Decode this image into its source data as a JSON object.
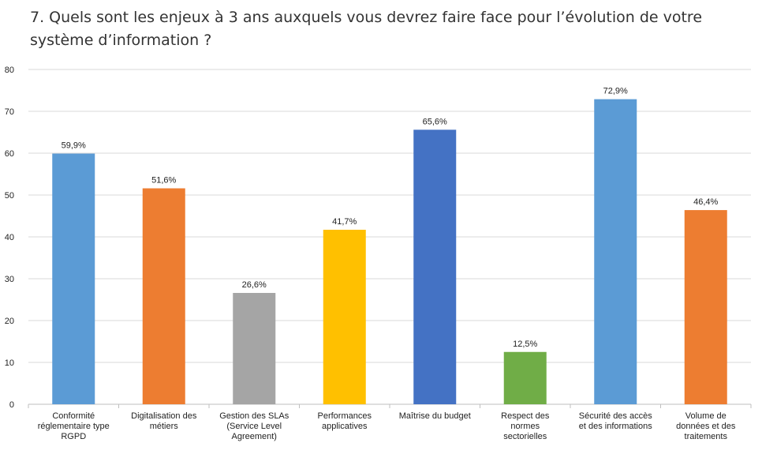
{
  "chart_data": {
    "type": "bar",
    "title": "7. Quels sont les enjeux à 3 ans auxquels vous devrez faire face pour l’évolution de votre système d’information ?",
    "categories": [
      "Conformité\nréglementaire type\nRGPD",
      "Digitalisation des\nmétiers",
      "Gestion des SLAs\n(Service Level\nAgreement)",
      "Performances\napplicatives",
      "Maîtrise du budget",
      "Respect des\nnormes\nsectorielles",
      "Sécurité des accès\net des informations",
      "Volume de\ndonnées et des\ntraitements"
    ],
    "values": [
      59.9,
      51.6,
      26.6,
      41.7,
      65.6,
      12.5,
      72.9,
      46.4
    ],
    "data_labels": [
      "59,9%",
      "51,6%",
      "26,6%",
      "41,7%",
      "65,6%",
      "12,5%",
      "72,9%",
      "46,4%"
    ],
    "colors": [
      "#5B9BD5",
      "#ED7D31",
      "#A5A5A5",
      "#FFC000",
      "#4472C4",
      "#70AD47",
      "#5B9BD5",
      "#ED7D31"
    ],
    "ylim": [
      0,
      80
    ],
    "yticks": [
      "0",
      "10",
      "20",
      "30",
      "40",
      "50",
      "60",
      "70",
      "80"
    ],
    "grid": true,
    "xlabel": "",
    "ylabel": ""
  }
}
